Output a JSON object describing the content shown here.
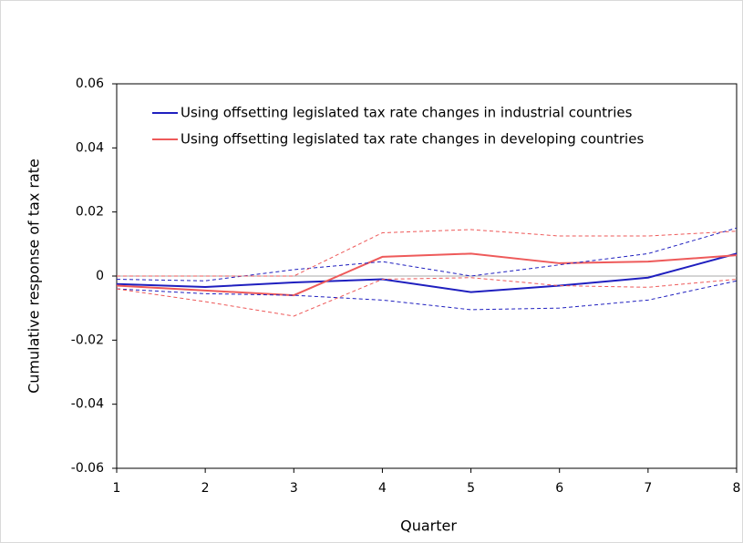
{
  "chart_data": {
    "type": "line",
    "xlabel": "Quarter",
    "ylabel": "Cumulative response of tax rate",
    "x": [
      1,
      2,
      3,
      4,
      5,
      6,
      7,
      8
    ],
    "xlim": [
      1,
      8
    ],
    "xticks": [
      1,
      2,
      3,
      4,
      5,
      6,
      7,
      8
    ],
    "ylim": [
      -0.06,
      0.06
    ],
    "yticks": [
      0.06,
      0.04,
      0.02,
      0,
      -0.02,
      -0.04,
      -0.06
    ],
    "legend": "top-left",
    "series": [
      {
        "name": "Using offsetting legislated tax rate changes in industrial countries",
        "color": "#1f1fbf",
        "style": "solid",
        "values": [
          -0.0025,
          -0.0034,
          -0.002,
          -0.001,
          -0.005,
          -0.003,
          -0.0005,
          0.007
        ]
      },
      {
        "name": "Using offsetting legislated tax rate changes in developing countries",
        "color": "#ee5a5a",
        "style": "solid",
        "values": [
          -0.003,
          -0.0045,
          -0.006,
          0.006,
          0.007,
          0.004,
          0.0045,
          0.0065
        ]
      },
      {
        "color": "#1f1fbf",
        "style": "dashed",
        "values": [
          -0.001,
          -0.0015,
          0.002,
          0.0045,
          0,
          0.0035,
          0.007,
          0.015
        ]
      },
      {
        "color": "#1f1fbf",
        "style": "dashed",
        "values": [
          -0.004,
          -0.0055,
          -0.006,
          -0.0075,
          -0.0105,
          -0.01,
          -0.0075,
          -0.0015
        ]
      },
      {
        "color": "#ee5a5a",
        "style": "dashed",
        "values": [
          0,
          0,
          0,
          0.0135,
          0.0145,
          0.0125,
          0.0125,
          0.014
        ]
      },
      {
        "color": "#ee5a5a",
        "style": "dashed",
        "values": [
          -0.004,
          -0.008,
          -0.0125,
          -0.001,
          -0.0005,
          -0.003,
          -0.0035,
          -0.001
        ]
      }
    ]
  }
}
